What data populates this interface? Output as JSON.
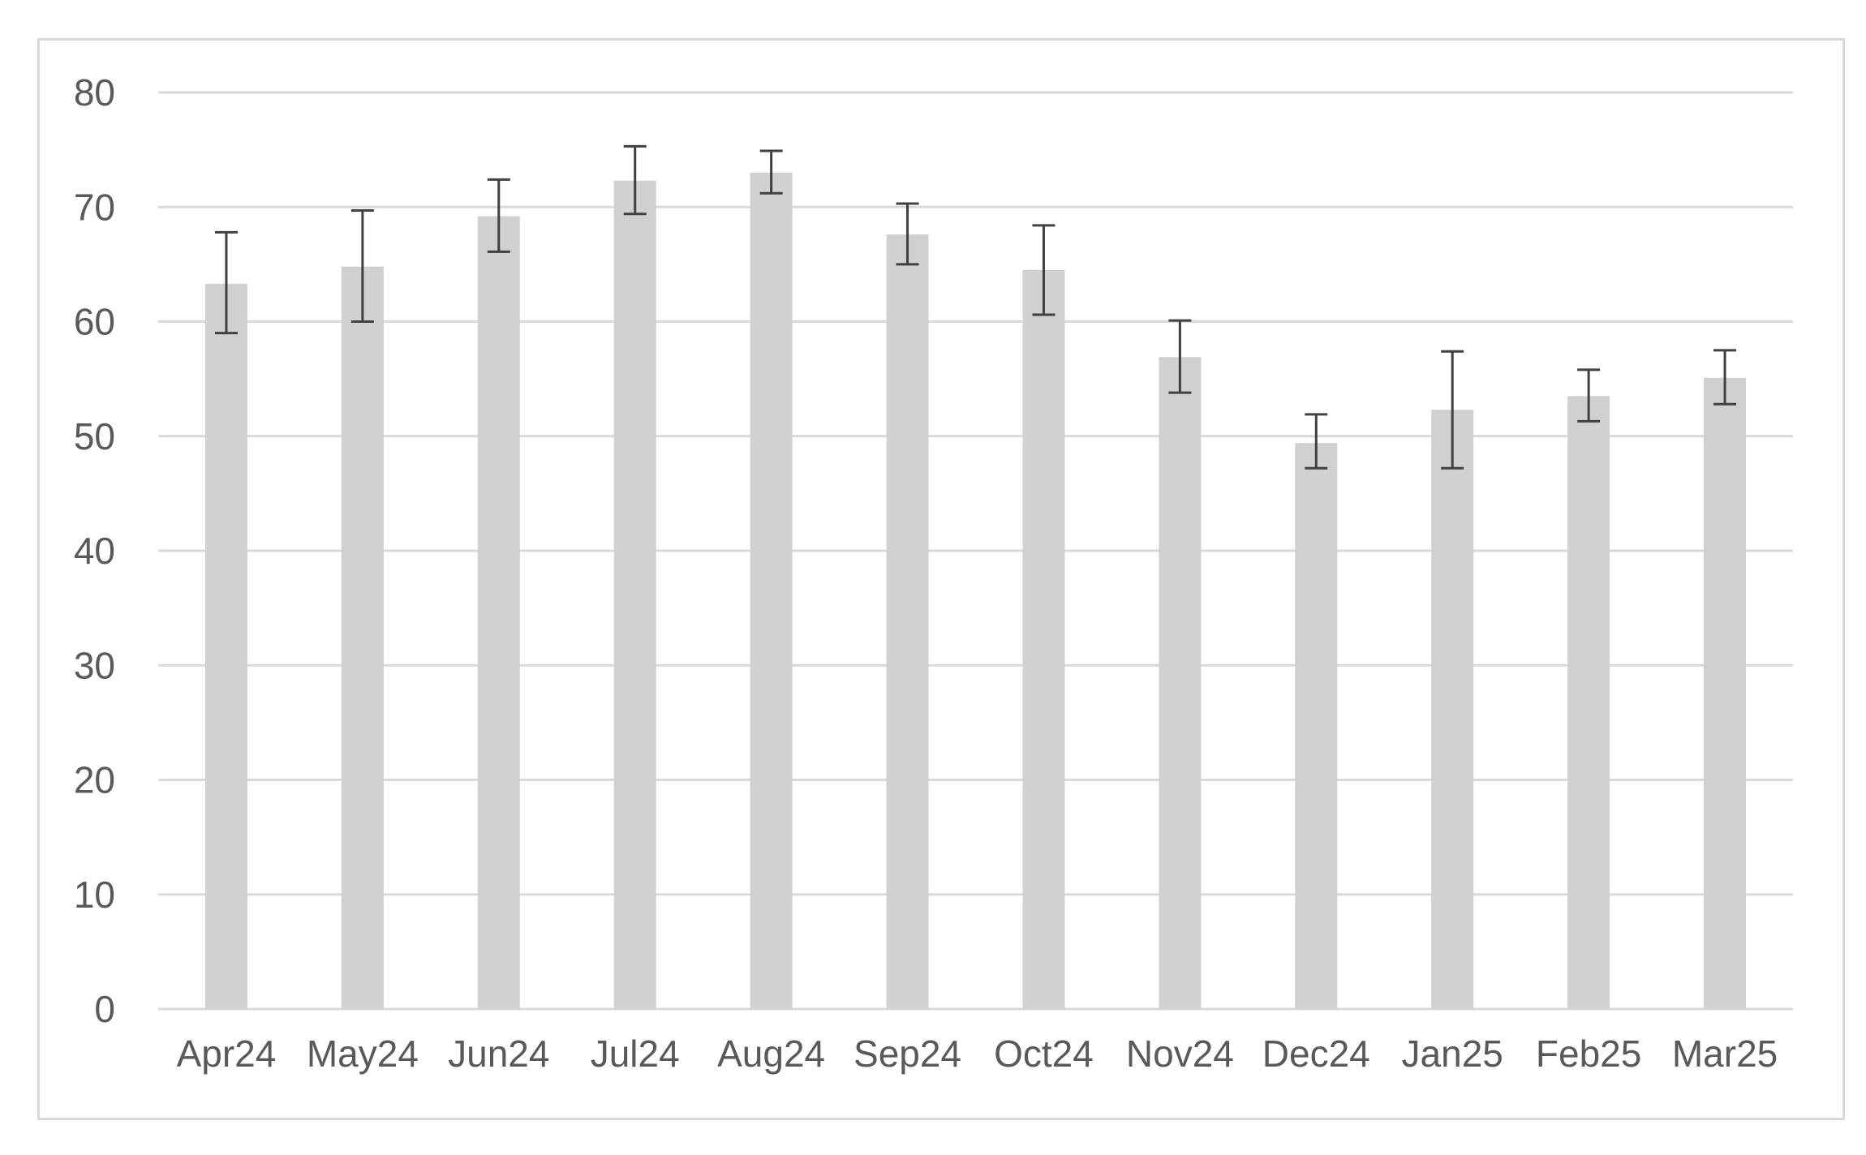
{
  "chart_data": {
    "type": "bar",
    "categories": [
      "Apr24",
      "May24",
      "Jun24",
      "Jul24",
      "Aug24",
      "Sep24",
      "Oct24",
      "Nov24",
      "Dec24",
      "Jan25",
      "Feb25",
      "Mar25"
    ],
    "values": [
      63.3,
      64.8,
      69.2,
      72.3,
      73.0,
      67.6,
      64.5,
      56.9,
      49.4,
      52.3,
      53.5,
      55.1
    ],
    "error_upper": [
      67.8,
      69.7,
      72.4,
      75.3,
      74.9,
      70.3,
      68.4,
      60.1,
      51.9,
      57.4,
      55.8,
      57.5
    ],
    "error_lower": [
      59.0,
      60.0,
      66.1,
      69.4,
      71.2,
      65.0,
      60.6,
      53.8,
      47.2,
      47.2,
      51.3,
      52.8
    ],
    "y_ticks": [
      0,
      10,
      20,
      30,
      40,
      50,
      60,
      70,
      80
    ],
    "ylim": [
      0,
      80
    ],
    "title": "",
    "xlabel": "",
    "ylabel": "",
    "grid": "horizontal",
    "legend": "none",
    "colors": {
      "bar": "#d0d0d0",
      "error_bar": "#404040",
      "gridline": "#d9d9d9",
      "tick_text": "#595959",
      "frame": "#d9d9d9"
    }
  }
}
